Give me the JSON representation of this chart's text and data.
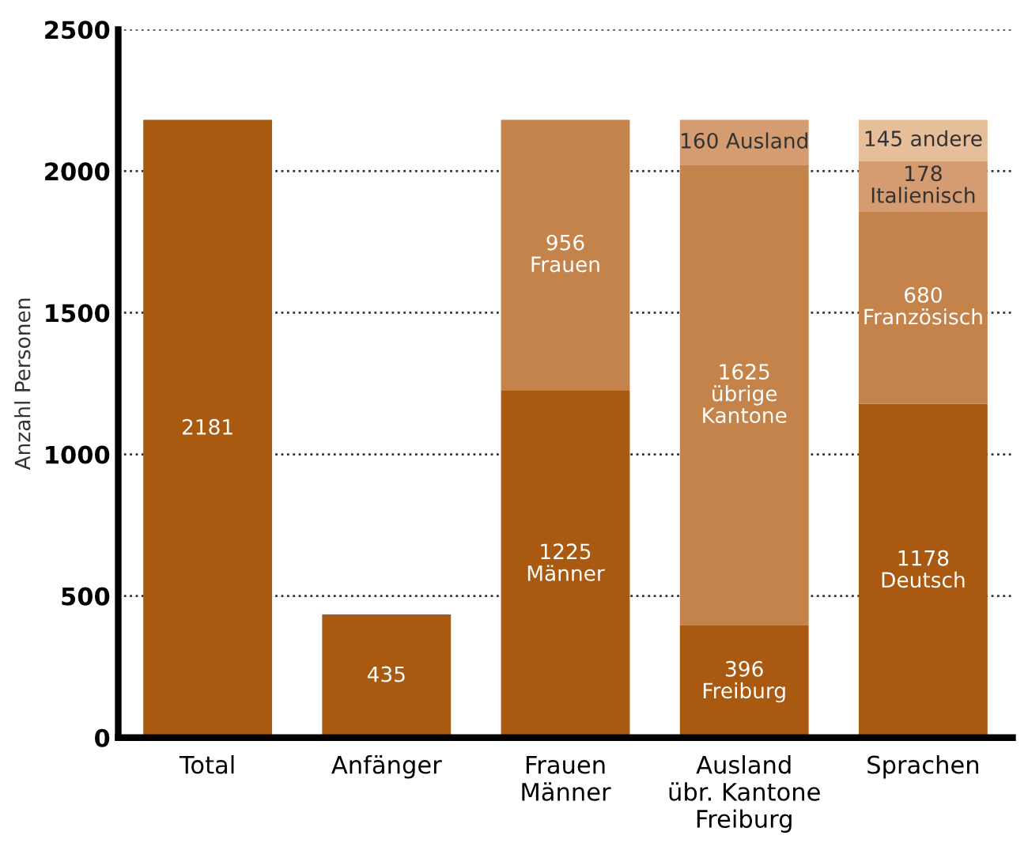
{
  "chart_data": {
    "type": "bar",
    "stacked": true,
    "ylabel": "Anzahl Personen",
    "categories": [
      "Total",
      "Anfänger",
      "Frauen\nMänner",
      "Ausland\nübr. Kantone\nFreiburg",
      "Sprachen"
    ],
    "series": [
      {
        "color": "#a95a10",
        "values": [
          2181,
          435,
          1225,
          396,
          1178
        ],
        "value_labels": [
          "2181",
          "435",
          "1225\nMänner",
          "396\nFreiburg",
          "1178\nDeutsch"
        ]
      },
      {
        "color": "#c4834a",
        "values": [
          null,
          null,
          956,
          1625,
          680
        ],
        "value_labels": [
          null,
          null,
          "956\nFrauen",
          "1625\nübrige\nKantone",
          "680\nFranzösisch"
        ]
      },
      {
        "color": "#d49c70",
        "values": [
          null,
          null,
          null,
          160,
          178
        ],
        "value_labels": [
          null,
          null,
          null,
          "160 Ausland",
          "178\nItalienisch"
        ]
      },
      {
        "color": "#e6bf9a",
        "values": [
          null,
          null,
          null,
          null,
          145
        ],
        "value_labels": [
          null,
          null,
          null,
          null,
          "145 andere"
        ]
      }
    ],
    "ylim": [
      0,
      2500
    ],
    "yticks": [
      0,
      500,
      1000,
      1500,
      2000,
      2500
    ],
    "grid": "y"
  }
}
